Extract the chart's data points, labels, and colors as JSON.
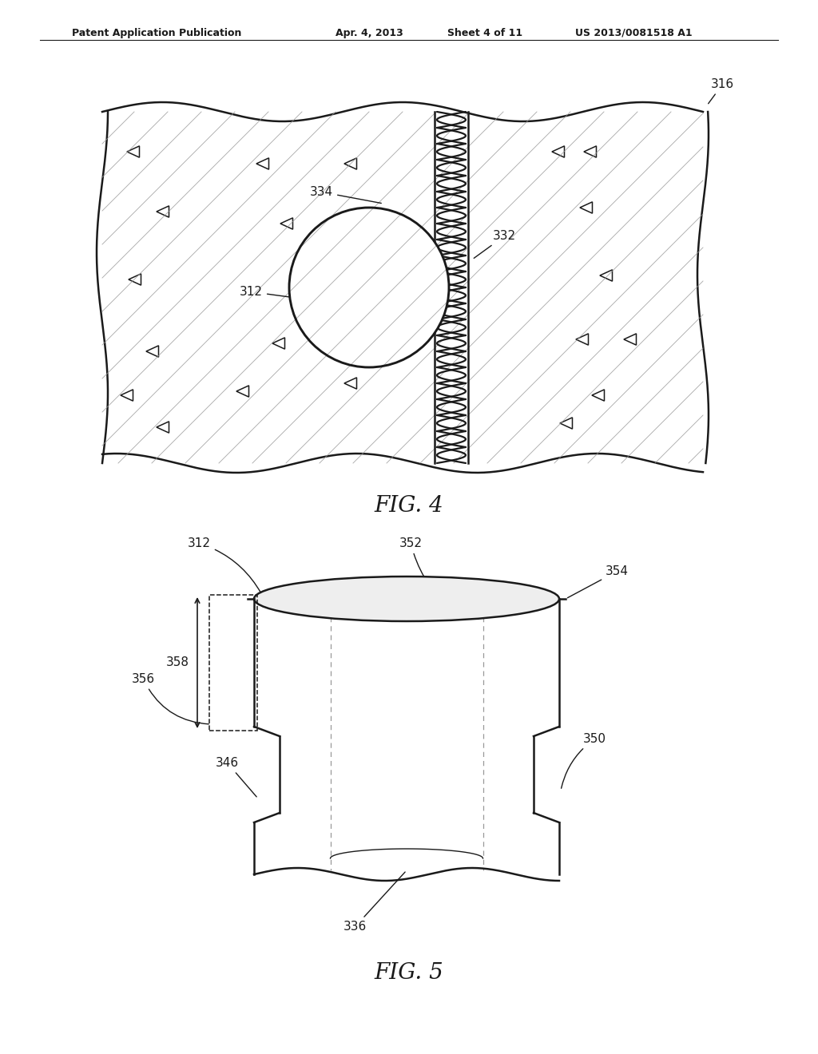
{
  "bg_color": "#ffffff",
  "header_text": "Patent Application Publication",
  "header_date": "Apr. 4, 2013",
  "header_sheet": "Sheet 4 of 11",
  "header_patent": "US 2013/0081518 A1",
  "fig4_label": "FIG. 4",
  "fig5_label": "FIG. 5",
  "line_color": "#1a1a1a"
}
